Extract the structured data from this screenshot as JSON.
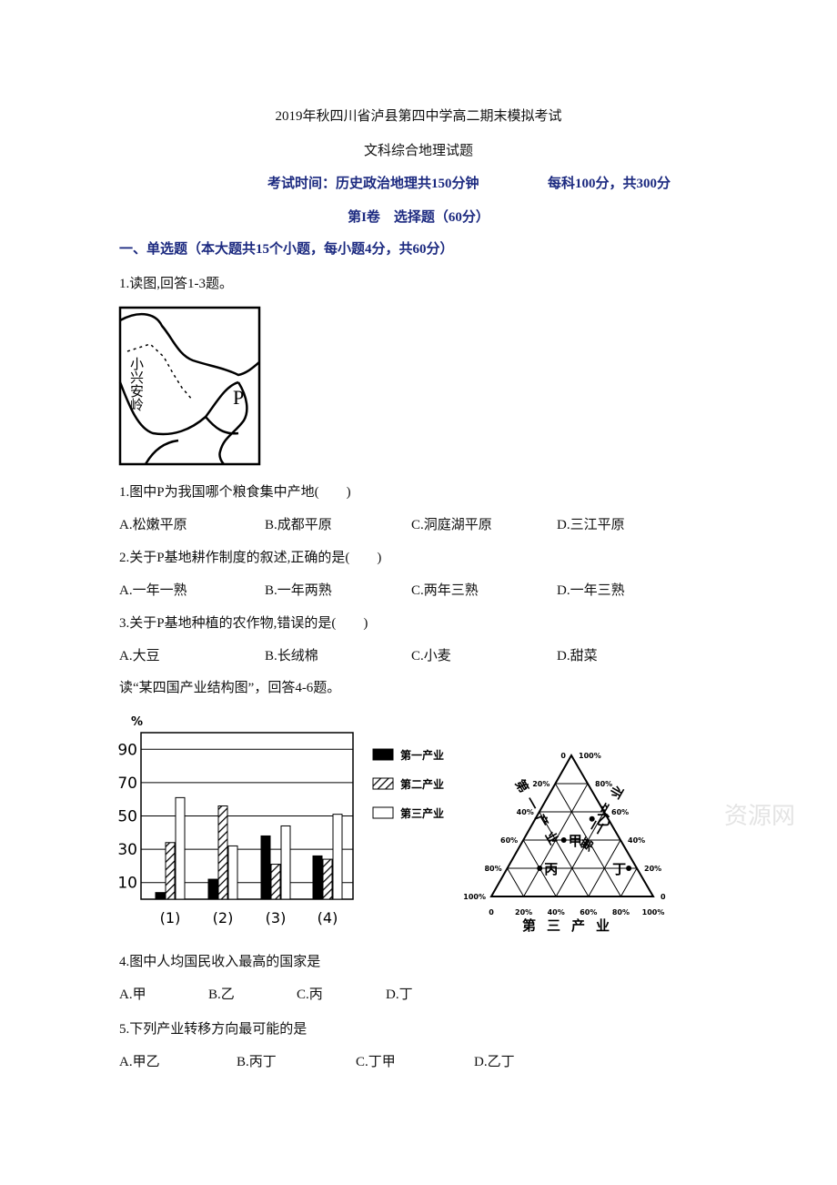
{
  "header": {
    "title": "2019年秋四川省泸县第四中学高二期末模拟考试",
    "subtitle": "文科综合地理试题",
    "exam_time": "考试时间：历史政治地理共150分钟",
    "exam_score": "每科100分，共300分",
    "section": "第I卷　选择题（60分）"
  },
  "part": "一、单选题（本大题共15个小题，每小题4分，共60分）",
  "intro1": "1.读图,回答1-3题。",
  "map": {
    "range_label": "小兴安岭",
    "point_label": "P"
  },
  "questions": [
    {
      "stem": "1.图中P为我国哪个粮食集中产地(　　)",
      "options": [
        "A.松嫩平原",
        "B.成都平原",
        "C.洞庭湖平原",
        "D.三江平原"
      ]
    },
    {
      "stem": "2.关于P基地耕作制度的叙述,正确的是(　　)",
      "options": [
        "A.一年一熟",
        "B.一年两熟",
        "C.两年三熟",
        "D.一年三熟"
      ]
    },
    {
      "stem": "3.关于P基地种植的农作物,错误的是(　　)",
      "options": [
        "A.大豆",
        "B.长绒棉",
        "C.小麦",
        "D.甜菜"
      ]
    }
  ],
  "intro2": "读“某四国产业结构图”，回答4-6题。",
  "bar_chart": {
    "type": "bar",
    "y_unit": "%",
    "ylim": [
      0,
      100
    ],
    "yticks": [
      10,
      30,
      50,
      70,
      90
    ],
    "categories": [
      "(1)",
      "(2)",
      "(3)",
      "(4)"
    ],
    "series": [
      {
        "name": "第一产业",
        "color": "#000000",
        "values": [
          4,
          12,
          38,
          26
        ]
      },
      {
        "name": "第二产业",
        "color": "#000000",
        "pattern": "hatch",
        "values": [
          34,
          56,
          21,
          24
        ]
      },
      {
        "name": "第三产业",
        "color": "#ffffff",
        "values": [
          61,
          32,
          44,
          51
        ]
      }
    ]
  },
  "ternary": {
    "type": "ternary",
    "axes": {
      "left": "第一产业",
      "right": "第二产业",
      "bottom": "第三产业"
    },
    "ticks": [
      0,
      {
        "value": 20,
        "label": "20%"
      },
      {
        "value": 40,
        "label": "40%"
      },
      {
        "value": 60,
        "label": "60%"
      },
      {
        "value": 80,
        "label": "80%"
      },
      {
        "value": 100,
        "label": "100%"
      }
    ],
    "points": [
      {
        "label": "甲",
        "primary": 35,
        "secondary": 40,
        "tertiary": 25
      },
      {
        "label": "乙",
        "primary": 10,
        "secondary": 55,
        "tertiary": 35
      },
      {
        "label": "丙",
        "primary": 60,
        "secondary": 20,
        "tertiary": 20
      },
      {
        "label": "丁",
        "primary": 5,
        "secondary": 20,
        "tertiary": 75
      }
    ]
  },
  "questions2": [
    {
      "stem": "4.图中人均国民收入最高的国家是",
      "options": [
        "A.甲",
        "B.乙",
        "C.丙",
        "D.丁"
      ]
    },
    {
      "stem": "5.下列产业转移方向最可能的是",
      "options": [
        "A.甲乙",
        "B.丙丁",
        "C.丁甲",
        "D.乙丁"
      ]
    }
  ],
  "watermark": "资源网"
}
